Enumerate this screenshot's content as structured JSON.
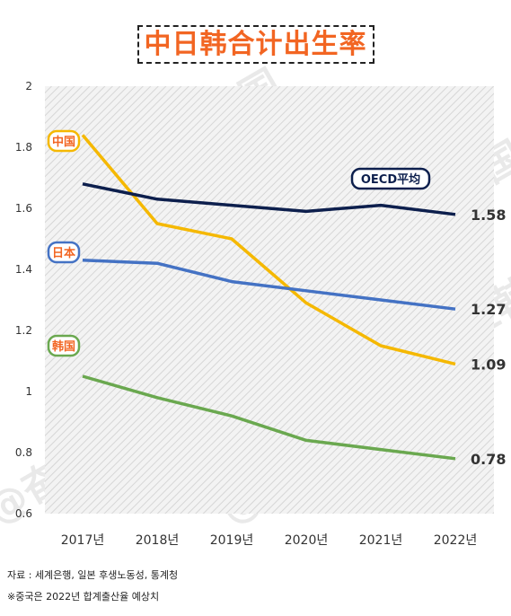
{
  "title": "中日韩合计出生率",
  "footnotes": [
    "자료 : 세계은행, 일본 후생노동성, 통계청",
    "※중국은 2022년 합계출산율 예상치"
  ],
  "watermark": "@奋斗在韩国",
  "chart_data": {
    "type": "line",
    "title": "中日韩合计出生率",
    "categories": [
      "2017년",
      "2018년",
      "2019년",
      "2020년",
      "2021년",
      "2022년"
    ],
    "ylim": [
      0.6,
      2.0
    ],
    "yticks": [
      "0.6",
      "0.8",
      "1",
      "1.2",
      "1.4",
      "1.6",
      "1.8",
      "2"
    ],
    "grid": false,
    "series": [
      {
        "name": "中国",
        "color": "#f5b800",
        "values": [
          1.84,
          1.55,
          1.5,
          1.29,
          1.15,
          1.09
        ],
        "end_label": ""
      },
      {
        "name": "OECD平均",
        "color": "#0d1f4d",
        "values": [
          1.68,
          1.63,
          1.61,
          1.59,
          1.61,
          1.58
        ],
        "end_label": "1.58"
      },
      {
        "name": "日本",
        "color": "#4472c4",
        "values": [
          1.43,
          1.42,
          1.36,
          1.33,
          1.3,
          1.27
        ],
        "end_label": "1.27"
      },
      {
        "name": "韩国",
        "color": "#6aa84f",
        "values": [
          1.05,
          0.98,
          0.92,
          0.84,
          0.81,
          0.78
        ],
        "end_label": "0.78"
      }
    ],
    "china_end_label": "1.09"
  }
}
